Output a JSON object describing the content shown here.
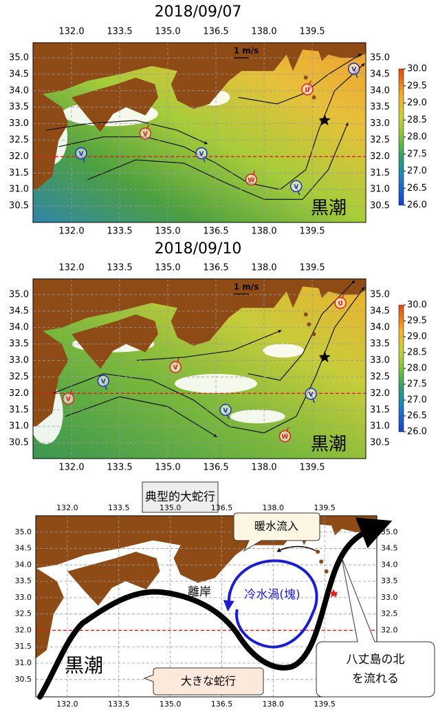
{
  "panels": [
    {
      "title": "2018/09/07",
      "xlim": [
        130.8,
        141.17
      ],
      "ylim": [
        30.0,
        35.46
      ],
      "xticks": [
        {
          "value": 132,
          "label": "132.0"
        },
        {
          "value": 133.5,
          "label": "133.5"
        },
        {
          "value": 135,
          "label": "135.0"
        },
        {
          "value": 136.5,
          "label": "136.5"
        },
        {
          "value": 138,
          "label": "138.0"
        },
        {
          "value": 139.5,
          "label": "139.5"
        }
      ],
      "yticks": [
        {
          "value": 35,
          "label": "35.0"
        },
        {
          "value": 34.5,
          "label": "34.5"
        },
        {
          "value": 34,
          "label": "34.0"
        },
        {
          "value": 33.5,
          "label": "33.5"
        },
        {
          "value": 33,
          "label": "33.0"
        },
        {
          "value": 32.5,
          "label": "32.5"
        },
        {
          "value": 32,
          "label": "32.0"
        },
        {
          "value": 31.5,
          "label": "31.5"
        },
        {
          "value": 31,
          "label": "31.0"
        },
        {
          "value": 30.5,
          "label": "30.5"
        }
      ],
      "scale_label": "1 m/s",
      "region_label": "黒潮",
      "markers": [
        "U",
        "V",
        "V",
        "V",
        "W",
        "V",
        "V"
      ],
      "colorbar": {
        "lim": [
          26,
          30
        ],
        "ticks": [
          {
            "value": 30,
            "label": "30.0"
          },
          {
            "value": 29.5,
            "label": "29.5"
          },
          {
            "value": 29,
            "label": "29.0"
          },
          {
            "value": 28.5,
            "label": "28.5"
          },
          {
            "value": 28,
            "label": "28.0"
          },
          {
            "value": 27.5,
            "label": "27.5"
          },
          {
            "value": 27,
            "label": "27.0"
          },
          {
            "value": 26.5,
            "label": "26.5"
          },
          {
            "value": 26,
            "label": "26.0"
          }
        ]
      }
    },
    {
      "title": "2018/09/10",
      "xlim": [
        130.8,
        141.17
      ],
      "ylim": [
        30.02,
        35.48
      ],
      "xticks": [
        {
          "value": 132,
          "label": "132.0"
        },
        {
          "value": 133.5,
          "label": "133.5"
        },
        {
          "value": 135,
          "label": "135.0"
        },
        {
          "value": 136.5,
          "label": "136.5"
        },
        {
          "value": 138,
          "label": "138.0"
        },
        {
          "value": 139.5,
          "label": "139.5"
        }
      ],
      "yticks": [
        {
          "value": 35,
          "label": "35.0"
        },
        {
          "value": 34.5,
          "label": "34.5"
        },
        {
          "value": 34,
          "label": "34.0"
        },
        {
          "value": 33.5,
          "label": "33.5"
        },
        {
          "value": 33,
          "label": "33.0"
        },
        {
          "value": 32.5,
          "label": "32.5"
        },
        {
          "value": 32,
          "label": "32.0"
        },
        {
          "value": 31.5,
          "label": "31.5"
        },
        {
          "value": 31,
          "label": "31.0"
        },
        {
          "value": 30.5,
          "label": "30.5"
        }
      ],
      "scale_label": "1 m/s",
      "region_label": "黒潮",
      "markers": [
        "U",
        "V",
        "V",
        "V",
        "V",
        "V",
        "W"
      ],
      "colorbar": {
        "lim": [
          26,
          30
        ],
        "ticks": [
          {
            "value": 30,
            "label": "30.0"
          },
          {
            "value": 29.5,
            "label": "29.5"
          },
          {
            "value": 29,
            "label": "29.0"
          },
          {
            "value": 28.5,
            "label": "28.5"
          },
          {
            "value": 28,
            "label": "28.0"
          },
          {
            "value": 27.5,
            "label": "27.5"
          },
          {
            "value": 27,
            "label": "27.0"
          },
          {
            "value": 26.5,
            "label": "26.5"
          },
          {
            "value": 26,
            "label": "26.0"
          }
        ]
      }
    }
  ],
  "schematic": {
    "title": "典型的大蛇行",
    "xlim": [
      131.08,
      141.02
    ],
    "ylim": [
      29.97,
      35.5
    ],
    "xticks": [
      {
        "value": 132,
        "label": "132.0"
      },
      {
        "value": 133.5,
        "label": "133.5"
      },
      {
        "value": 135,
        "label": "135.0"
      },
      {
        "value": 136.5,
        "label": "136.5"
      },
      {
        "value": 138,
        "label": "138.0"
      },
      {
        "value": 139.5,
        "label": "139.5"
      }
    ],
    "yticks": [
      {
        "value": 35,
        "label": "35.0"
      },
      {
        "value": 34.5,
        "label": "34.5"
      },
      {
        "value": 34,
        "label": "34.0"
      },
      {
        "value": 33.5,
        "label": "33.5"
      },
      {
        "value": 33,
        "label": "33.0"
      },
      {
        "value": 32.5,
        "label": "32.5"
      },
      {
        "value": 32,
        "label": "32.0"
      },
      {
        "value": 31.5,
        "label": "31.5"
      },
      {
        "value": 31,
        "label": "31.0"
      },
      {
        "value": 30.5,
        "label": "30.5"
      }
    ],
    "warm_inflow": "暖水流入",
    "offshore": "離岸",
    "cold_eddy": "冷水渦(塊)",
    "large_meander": "大きな蛇行",
    "hachijo": [
      "八丈島の北",
      "を流れる"
    ],
    "kuroshio": "黒潮"
  }
}
